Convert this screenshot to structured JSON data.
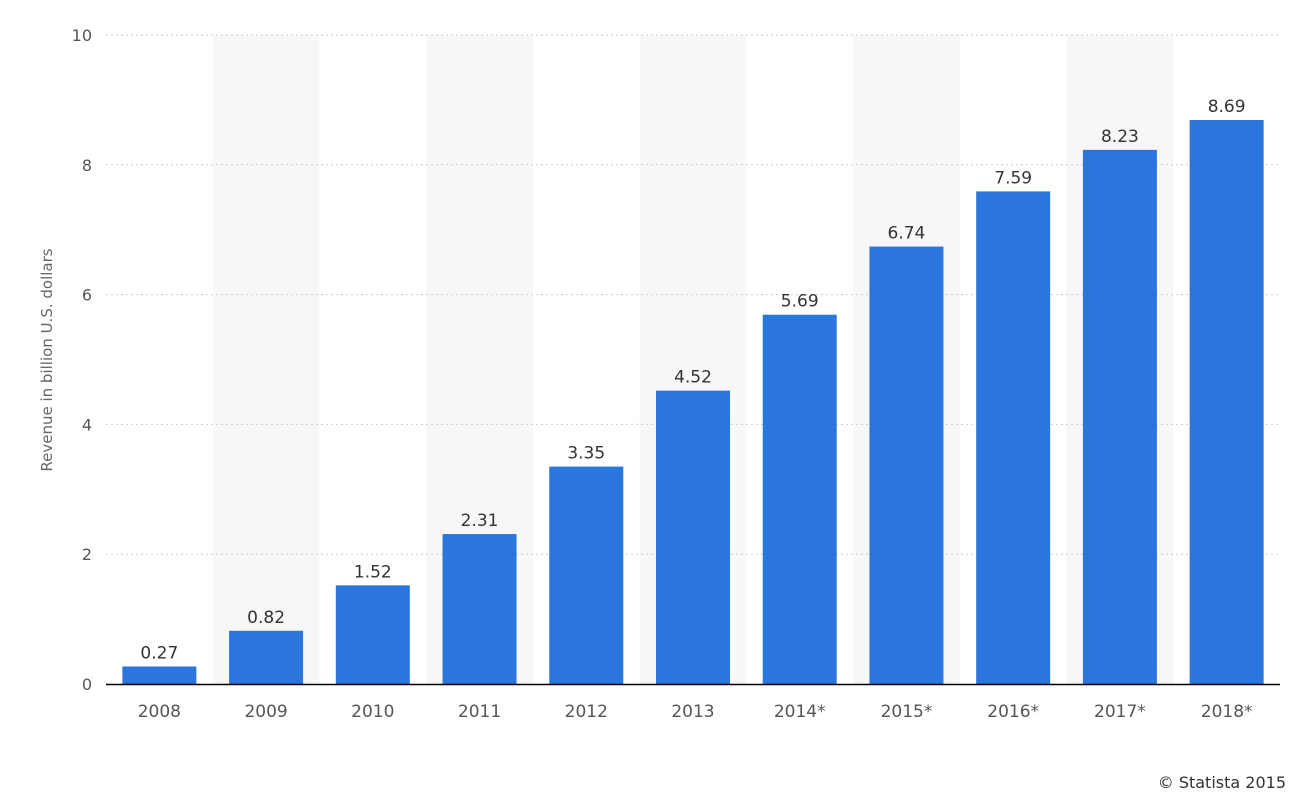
{
  "chart_data": {
    "type": "bar",
    "title": "",
    "xlabel": "",
    "ylabel": "Revenue in billion U.S. dollars",
    "categories": [
      "2008",
      "2009",
      "2010",
      "2011",
      "2012",
      "2013",
      "2014*",
      "2015*",
      "2016*",
      "2017*",
      "2018*"
    ],
    "values": [
      0.27,
      0.82,
      1.52,
      2.31,
      3.35,
      4.52,
      5.69,
      6.74,
      7.59,
      8.23,
      8.69
    ],
    "value_labels": [
      "0.27",
      "0.82",
      "1.52",
      "2.31",
      "3.35",
      "4.52",
      "5.69",
      "6.74",
      "7.59",
      "8.23",
      "8.69"
    ],
    "ylim": [
      0,
      10
    ],
    "yticks": [
      "0",
      "2",
      "4",
      "6",
      "8",
      "10"
    ],
    "grid": true,
    "legend": "none",
    "alternating_column_shading": true,
    "colors": {
      "bar": "#2a76dd",
      "shade": "#f7f7f7",
      "grid": "#cccccc",
      "axis": "#000000",
      "text": "#333333",
      "tick_text": "#555555"
    }
  },
  "footer": {
    "credit": "© Statista 2015"
  }
}
